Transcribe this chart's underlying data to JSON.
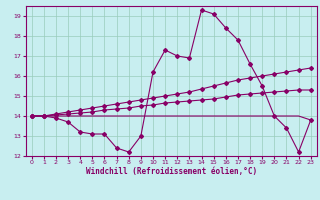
{
  "xlabel": "Windchill (Refroidissement éolien,°C)",
  "xlim": [
    -0.5,
    23.5
  ],
  "ylim": [
    12,
    19.5
  ],
  "yticks": [
    12,
    13,
    14,
    15,
    16,
    17,
    18,
    19
  ],
  "xticks": [
    0,
    1,
    2,
    3,
    4,
    5,
    6,
    7,
    8,
    9,
    10,
    11,
    12,
    13,
    14,
    15,
    16,
    17,
    18,
    19,
    20,
    21,
    22,
    23
  ],
  "bg_color": "#c8eef0",
  "line_color": "#880066",
  "grid_color": "#99ccbb",
  "series_main": [
    14.0,
    14.0,
    13.9,
    13.7,
    13.2,
    13.1,
    13.1,
    12.4,
    12.2,
    13.0,
    16.2,
    17.3,
    17.0,
    16.9,
    19.3,
    19.1,
    18.4,
    17.8,
    16.6,
    15.5,
    14.0,
    13.4,
    12.2,
    13.8
  ],
  "series_trend1": [
    14.0,
    14.0,
    14.05,
    14.1,
    14.15,
    14.2,
    14.3,
    14.35,
    14.4,
    14.5,
    14.55,
    14.65,
    14.7,
    14.75,
    14.8,
    14.85,
    14.95,
    15.05,
    15.1,
    15.15,
    15.2,
    15.25,
    15.3,
    15.3
  ],
  "series_trend2": [
    14.0,
    14.0,
    14.1,
    14.2,
    14.3,
    14.4,
    14.5,
    14.6,
    14.7,
    14.8,
    14.9,
    15.0,
    15.1,
    15.2,
    15.35,
    15.5,
    15.65,
    15.8,
    15.9,
    16.0,
    16.1,
    16.2,
    16.3,
    16.4
  ],
  "series_flat": [
    14.0,
    14.0,
    14.0,
    14.0,
    14.0,
    14.0,
    14.0,
    14.0,
    14.0,
    14.0,
    14.0,
    14.0,
    14.0,
    14.0,
    14.0,
    14.0,
    14.0,
    14.0,
    14.0,
    14.0,
    14.0,
    14.0,
    14.0,
    13.8
  ]
}
